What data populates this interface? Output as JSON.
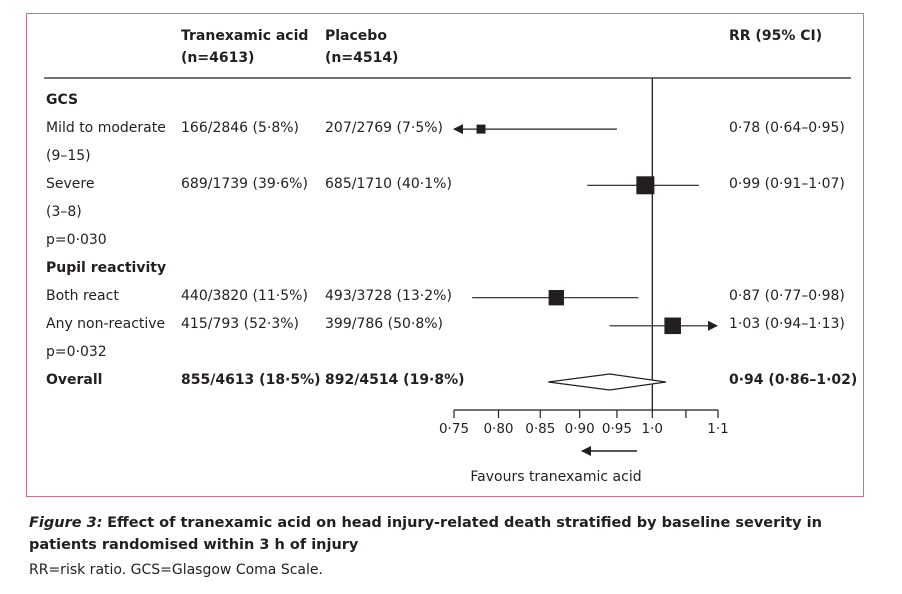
{
  "headers": {
    "col_tx": [
      "Tranexamic acid",
      "(n=4613)"
    ],
    "col_pl": [
      "Placebo",
      "(n=4514)"
    ],
    "col_rr": "RR (95% CI)"
  },
  "rows": [
    {
      "label": "GCS",
      "bold": true,
      "tx": "",
      "pl": "",
      "rr": ""
    },
    {
      "label": "Mild to moderate",
      "bold": false,
      "tx": "166/2846 (5·8%)",
      "pl": "207/2769 (7·5%)",
      "rr": "0·78 (0·64–0·95)"
    },
    {
      "label": "(9–15)",
      "bold": false,
      "tx": "",
      "pl": "",
      "rr": ""
    },
    {
      "label": "Severe",
      "bold": false,
      "tx": "689/1739 (39·6%)",
      "pl": "685/1710 (40·1%)",
      "rr": "0·99 (0·91–1·07)"
    },
    {
      "label": "(3–8)",
      "bold": false,
      "tx": "",
      "pl": "",
      "rr": ""
    },
    {
      "label": "p=0·030",
      "bold": false,
      "tx": "",
      "pl": "",
      "rr": ""
    },
    {
      "label": "Pupil reactivity",
      "bold": true,
      "tx": "",
      "pl": "",
      "rr": ""
    },
    {
      "label": "Both react",
      "bold": false,
      "tx": "440/3820 (11·5%)",
      "pl": "493/3728 (13·2%)",
      "rr": "0·87 (0·77–0·98)"
    },
    {
      "label": "Any non-reactive",
      "bold": false,
      "tx": "415/793 (52·3%)",
      "pl": "399/786 (50·8%)",
      "rr": "1·03 (0·94–1·13)"
    },
    {
      "label": "p=0·032",
      "bold": false,
      "tx": "",
      "pl": "",
      "rr": ""
    },
    {
      "label": "Overall",
      "bold": true,
      "tx": "855/4613 (18·5%)",
      "pl": "892/4514 (19·8%)",
      "rr": "0·94 (0·86–1·02)"
    }
  ],
  "chart_data": {
    "type": "forest",
    "xscale": "log",
    "xlim": [
      0.75,
      1.1
    ],
    "null_value": 1.0,
    "x_ticks": [
      {
        "value": 0.75,
        "label": "0·75"
      },
      {
        "value": 0.8,
        "label": "0·80"
      },
      {
        "value": 0.85,
        "label": "0·85"
      },
      {
        "value": 0.9,
        "label": "0·90"
      },
      {
        "value": 0.95,
        "label": "0·95"
      },
      {
        "value": 1.0,
        "label": "1·0"
      },
      {
        "value": 1.1,
        "label": "1·1"
      }
    ],
    "minor_ticks": [
      1.05
    ],
    "estimates": [
      {
        "label": "Mild to moderate (9–15)",
        "row": 1,
        "rr": 0.78,
        "lo": 0.64,
        "hi": 0.95,
        "marker": "square",
        "weight": 0.25,
        "clipped_low": true,
        "clipped_high": false
      },
      {
        "label": "Severe (3–8)",
        "row": 3,
        "rr": 0.99,
        "lo": 0.91,
        "hi": 1.07,
        "marker": "square",
        "weight": 1.0,
        "clipped_low": false,
        "clipped_high": false
      },
      {
        "label": "Both react",
        "row": 7,
        "rr": 0.87,
        "lo": 0.77,
        "hi": 0.98,
        "marker": "square",
        "weight": 0.78,
        "clipped_low": false,
        "clipped_high": false
      },
      {
        "label": "Any non-reactive",
        "row": 8,
        "rr": 1.03,
        "lo": 0.94,
        "hi": 1.13,
        "marker": "square",
        "weight": 0.88,
        "clipped_low": false,
        "clipped_high": true
      },
      {
        "label": "Overall",
        "row": 10,
        "rr": 0.94,
        "lo": 0.86,
        "hi": 1.02,
        "marker": "diamond",
        "weight": 1.0,
        "clipped_low": false,
        "clipped_high": false
      }
    ],
    "favours_label": "Favours tranexamic acid",
    "favours_direction": "left"
  },
  "caption": {
    "figure_label": "Figure 3:",
    "title": "Effect of tranexamic acid on head injury-related death stratified by baseline severity in patients randomised within 3 h of injury",
    "footnote": "RR=risk ratio. GCS=Glasgow Coma Scale."
  },
  "colors": {
    "border": "#c0768f",
    "ink": "#231f20"
  }
}
